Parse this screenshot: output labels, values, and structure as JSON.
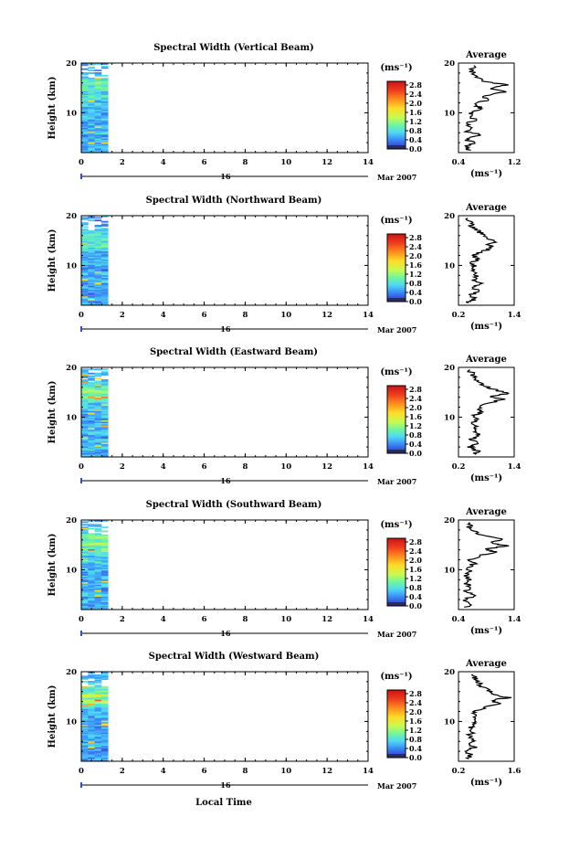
{
  "chart_data": [
    {
      "type": "heatmap",
      "title": "Spectral Width (Vertical Beam)",
      "ylabel": "Height (km)",
      "xlim": [
        0,
        14
      ],
      "ylim": [
        2,
        20
      ],
      "xticks": [
        "0",
        "2",
        "4",
        "6",
        "8",
        "10",
        "12",
        "14"
      ],
      "yticks": [
        "20",
        "10"
      ],
      "date_day": "16",
      "date_month": "Mar 2007",
      "data_extent_hours": [
        0,
        1.3
      ],
      "colorbar": {
        "unit": "(ms⁻¹)",
        "ticks": [
          "2.8",
          "2.4",
          "2.0",
          "1.6",
          "1.2",
          "0.8",
          "0.4",
          "0.0"
        ]
      },
      "average": {
        "title": "Average",
        "xlabel": "(ms⁻¹)",
        "xlim": [
          0.4,
          1.2
        ],
        "xticks": [
          "0.4",
          "1.2"
        ],
        "yticks": [
          "20",
          "10"
        ],
        "profile": [
          [
            0.55,
            2.5
          ],
          [
            0.5,
            3.2
          ],
          [
            0.62,
            4.0
          ],
          [
            0.48,
            4.8
          ],
          [
            0.75,
            5.5
          ],
          [
            0.52,
            6.2
          ],
          [
            0.6,
            7.0
          ],
          [
            0.5,
            7.8
          ],
          [
            0.66,
            8.6
          ],
          [
            0.55,
            9.4
          ],
          [
            0.6,
            10.2
          ],
          [
            0.72,
            11.0
          ],
          [
            0.6,
            11.8
          ],
          [
            0.82,
            12.6
          ],
          [
            0.75,
            13.4
          ],
          [
            1.05,
            14.2
          ],
          [
            0.85,
            15.0
          ],
          [
            1.1,
            15.6
          ],
          [
            0.8,
            16.2
          ],
          [
            0.7,
            17.0
          ],
          [
            0.62,
            17.8
          ],
          [
            0.58,
            18.6
          ],
          [
            0.62,
            19.5
          ]
        ]
      }
    },
    {
      "type": "heatmap",
      "title": "Spectral Width (Northward Beam)",
      "ylabel": "Height (km)",
      "xlim": [
        0,
        14
      ],
      "ylim": [
        2,
        20
      ],
      "xticks": [
        "0",
        "2",
        "4",
        "6",
        "8",
        "10",
        "12",
        "14"
      ],
      "yticks": [
        "20",
        "10"
      ],
      "date_day": "16",
      "date_month": "Mar 2007",
      "data_extent_hours": [
        0,
        1.3
      ],
      "colorbar": {
        "unit": "(ms⁻¹)",
        "ticks": [
          "2.8",
          "2.4",
          "2.0",
          "1.6",
          "1.2",
          "0.8",
          "0.4",
          "0.0"
        ]
      },
      "average": {
        "title": "Average",
        "xlabel": "(ms⁻¹)",
        "xlim": [
          0.2,
          1.4
        ],
        "xticks": [
          "0.2",
          "1.4"
        ],
        "yticks": [
          "20",
          "10"
        ],
        "profile": [
          [
            0.4,
            2.5
          ],
          [
            0.55,
            3.2
          ],
          [
            0.45,
            4.0
          ],
          [
            0.62,
            4.8
          ],
          [
            0.5,
            5.6
          ],
          [
            0.68,
            6.4
          ],
          [
            0.52,
            7.2
          ],
          [
            0.6,
            8.0
          ],
          [
            0.48,
            8.8
          ],
          [
            0.58,
            9.6
          ],
          [
            0.5,
            10.4
          ],
          [
            0.6,
            11.2
          ],
          [
            0.55,
            12.0
          ],
          [
            0.72,
            12.8
          ],
          [
            0.95,
            13.6
          ],
          [
            0.8,
            14.2
          ],
          [
            1.05,
            14.8
          ],
          [
            0.85,
            15.4
          ],
          [
            0.75,
            16.2
          ],
          [
            0.6,
            17.0
          ],
          [
            0.5,
            17.8
          ],
          [
            0.45,
            18.6
          ],
          [
            0.4,
            19.5
          ]
        ]
      }
    },
    {
      "type": "heatmap",
      "title": "Spectral Width (Eastward Beam)",
      "ylabel": "Height (km)",
      "xlim": [
        0,
        14
      ],
      "ylim": [
        2,
        20
      ],
      "xticks": [
        "0",
        "2",
        "4",
        "6",
        "8",
        "10",
        "12",
        "14"
      ],
      "yticks": [
        "20",
        "10"
      ],
      "date_day": "16",
      "date_month": "Mar 2007",
      "data_extent_hours": [
        0,
        1.3
      ],
      "colorbar": {
        "unit": "(ms⁻¹)",
        "ticks": [
          "2.8",
          "2.4",
          "2.0",
          "1.6",
          "1.2",
          "0.8",
          "0.4",
          "0.0"
        ]
      },
      "average": {
        "title": "Average",
        "xlabel": "(ms⁻¹)",
        "xlim": [
          0.2,
          1.4
        ],
        "xticks": [
          "0.2",
          "1.4"
        ],
        "yticks": [
          "20",
          "10"
        ],
        "profile": [
          [
            0.5,
            2.5
          ],
          [
            0.62,
            3.2
          ],
          [
            0.45,
            4.0
          ],
          [
            0.58,
            4.8
          ],
          [
            0.5,
            5.6
          ],
          [
            0.66,
            6.4
          ],
          [
            0.55,
            7.2
          ],
          [
            0.6,
            8.0
          ],
          [
            0.48,
            8.8
          ],
          [
            0.62,
            9.6
          ],
          [
            0.55,
            10.4
          ],
          [
            0.7,
            11.2
          ],
          [
            0.6,
            12.0
          ],
          [
            0.85,
            12.8
          ],
          [
            1.15,
            13.6
          ],
          [
            0.9,
            14.2
          ],
          [
            1.3,
            14.8
          ],
          [
            1.0,
            15.4
          ],
          [
            0.8,
            16.2
          ],
          [
            0.65,
            17.0
          ],
          [
            0.55,
            17.8
          ],
          [
            0.5,
            18.6
          ],
          [
            0.45,
            19.5
          ]
        ]
      }
    },
    {
      "type": "heatmap",
      "title": "Spectral Width (Southward Beam)",
      "ylabel": "Height (km)",
      "xlim": [
        0,
        14
      ],
      "ylim": [
        2,
        20
      ],
      "xticks": [
        "0",
        "2",
        "4",
        "6",
        "8",
        "10",
        "12",
        "14"
      ],
      "yticks": [
        "20",
        "10"
      ],
      "date_day": "16",
      "date_month": "Mar 2007",
      "data_extent_hours": [
        0,
        1.3
      ],
      "colorbar": {
        "unit": "(ms⁻¹)",
        "ticks": [
          "2.8",
          "2.4",
          "2.0",
          "1.6",
          "1.2",
          "0.8",
          "0.4",
          "0.0"
        ]
      },
      "average": {
        "title": "Average",
        "xlabel": "(ms⁻¹)",
        "xlim": [
          0.4,
          1.4
        ],
        "xticks": [
          "0.4",
          "1.4"
        ],
        "yticks": [
          "20",
          "10"
        ],
        "profile": [
          [
            0.55,
            2.5
          ],
          [
            0.6,
            3.2
          ],
          [
            0.5,
            4.0
          ],
          [
            0.72,
            4.8
          ],
          [
            0.52,
            5.6
          ],
          [
            0.6,
            6.4
          ],
          [
            0.55,
            7.2
          ],
          [
            0.62,
            8.0
          ],
          [
            0.5,
            8.8
          ],
          [
            0.6,
            9.6
          ],
          [
            0.55,
            10.4
          ],
          [
            0.68,
            11.2
          ],
          [
            0.6,
            12.0
          ],
          [
            0.78,
            12.8
          ],
          [
            1.05,
            13.6
          ],
          [
            0.9,
            14.2
          ],
          [
            1.25,
            14.8
          ],
          [
            1.0,
            15.4
          ],
          [
            1.2,
            16.2
          ],
          [
            0.8,
            17.0
          ],
          [
            0.65,
            17.8
          ],
          [
            0.6,
            18.6
          ],
          [
            0.58,
            19.5
          ]
        ]
      }
    },
    {
      "type": "heatmap",
      "title": "Spectral Width (Westward Beam)",
      "ylabel": "Height (km)",
      "xlim": [
        0,
        14
      ],
      "ylim": [
        2,
        20
      ],
      "xticks": [
        "0",
        "2",
        "4",
        "6",
        "8",
        "10",
        "12",
        "14"
      ],
      "yticks": [
        "20",
        "10"
      ],
      "date_day": "16",
      "date_month": "Mar 2007",
      "xlabel": "Local Time",
      "data_extent_hours": [
        0,
        1.3
      ],
      "colorbar": {
        "unit": "(ms⁻¹)",
        "ticks": [
          "2.8",
          "2.4",
          "2.0",
          "1.6",
          "1.2",
          "0.8",
          "0.4",
          "0.0"
        ]
      },
      "average": {
        "title": "Average",
        "xlabel": "(ms⁻¹)",
        "xlim": [
          0.2,
          1.6
        ],
        "xticks": [
          "0.2",
          "1.6"
        ],
        "yticks": [
          "20",
          "10"
        ],
        "profile": [
          [
            0.45,
            2.5
          ],
          [
            0.5,
            3.2
          ],
          [
            0.42,
            4.0
          ],
          [
            0.6,
            4.8
          ],
          [
            0.5,
            5.6
          ],
          [
            0.58,
            6.4
          ],
          [
            0.48,
            7.2
          ],
          [
            0.55,
            8.0
          ],
          [
            0.5,
            8.8
          ],
          [
            0.6,
            9.6
          ],
          [
            0.55,
            10.4
          ],
          [
            0.66,
            11.2
          ],
          [
            0.6,
            12.0
          ],
          [
            0.85,
            12.8
          ],
          [
            1.25,
            13.6
          ],
          [
            1.0,
            14.2
          ],
          [
            1.45,
            14.8
          ],
          [
            1.1,
            15.4
          ],
          [
            0.95,
            16.2
          ],
          [
            0.8,
            17.0
          ],
          [
            0.7,
            17.8
          ],
          [
            0.62,
            18.6
          ],
          [
            0.55,
            19.5
          ]
        ]
      }
    }
  ]
}
